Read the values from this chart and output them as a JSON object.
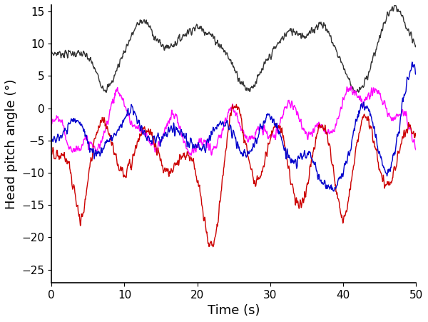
{
  "title": "",
  "xlabel": "Time (s)",
  "ylabel": "Head pitch angle (°)",
  "xlim": [
    0,
    50
  ],
  "ylim": [
    -27,
    16
  ],
  "xticks": [
    0,
    10,
    20,
    30,
    40,
    50
  ],
  "yticks": [
    -25,
    -20,
    -15,
    -10,
    -5,
    0,
    5,
    10,
    15
  ],
  "colors": [
    "#333333",
    "#ff00ff",
    "#cc0000",
    "#0000cc"
  ],
  "linewidth": 1.0,
  "figsize": [
    6.0,
    4.51
  ],
  "dpi": 100,
  "background": "#ffffff"
}
